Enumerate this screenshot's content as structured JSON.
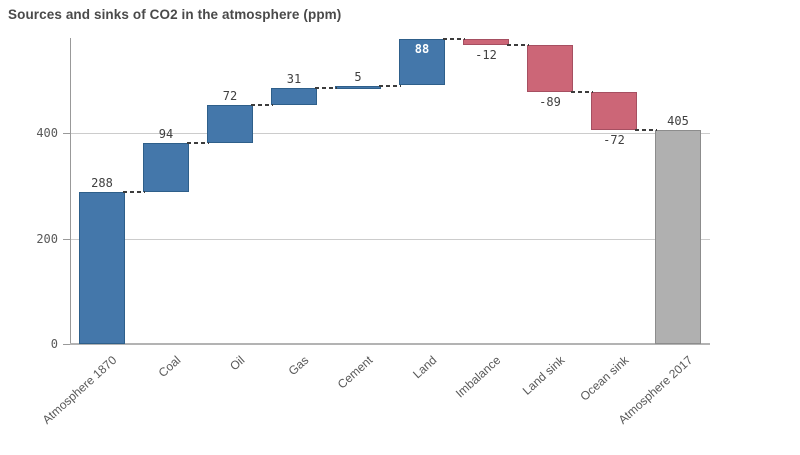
{
  "title": "Sources and sinks of CO2 in the atmosphere (ppm)",
  "chart_data": {
    "type": "bar",
    "subtype": "waterfall",
    "title": "Sources and sinks of CO2 in the atmosphere (ppm)",
    "categories": [
      "Atmosphere 1870",
      "Coal",
      "Oil",
      "Gas",
      "Cement",
      "Land",
      "Imbalance",
      "Land sink",
      "Ocean sink",
      "Atmosphere 2017"
    ],
    "values": [
      288,
      94,
      72,
      31,
      5,
      88,
      -12,
      -89,
      -72,
      405
    ],
    "kinds": [
      "add",
      "add",
      "add",
      "add",
      "add",
      "add",
      "subtract",
      "subtract",
      "subtract",
      "total"
    ],
    "bar_labels": [
      "288",
      "94",
      "72",
      "31",
      "5",
      "88",
      "-12",
      "-89",
      "-72",
      "405"
    ],
    "cumulative": [
      288,
      382,
      454,
      485,
      490,
      578,
      566,
      477,
      405,
      405
    ],
    "xlabel": "",
    "ylabel": "",
    "yticks": [
      0,
      200,
      400
    ],
    "ytick_labels": [
      "0",
      "200",
      "400"
    ],
    "ylim": [
      0,
      580
    ],
    "grid": true,
    "legend": false
  },
  "colors": {
    "positive": "#4477aa",
    "positive_border": "#2e5f8a",
    "negative": "#cc6677",
    "negative_border": "#a64f61",
    "total": "#b0b0b0",
    "total_border": "#8c8c8c",
    "gridline": "#cccccc",
    "axis": "#999999",
    "baseline": "#b3b3b3",
    "connector": "#3c3c3c",
    "title_text": "#4a4a4a",
    "value_text": "#404040",
    "tick_text": "#595959",
    "inside_value_text": "#ffffff"
  }
}
